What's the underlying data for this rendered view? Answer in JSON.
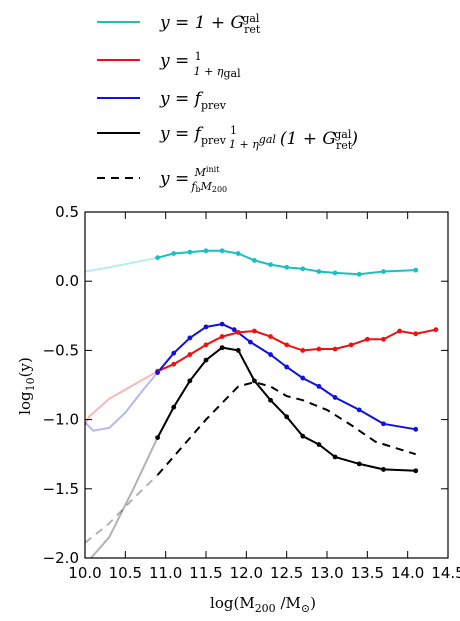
{
  "chart_data": {
    "type": "line",
    "xlabel": "log(M200 /M⊙)",
    "ylabel": "log10(y)",
    "xlim": [
      10.0,
      14.5
    ],
    "ylim": [
      -2.0,
      0.5
    ],
    "xtick_labels": [
      "10.0",
      "10.5",
      "11.0",
      "11.5",
      "12.0",
      "12.5",
      "13.0",
      "13.5",
      "14.0",
      "14.5"
    ],
    "ytick_labels": [
      "-2.0",
      "-1.5",
      "-1.0",
      "-0.5",
      "0.0",
      "0.5"
    ],
    "legend_placement": "top (above axes)",
    "series": [
      {
        "name": "y = 1 + G_ret^gal",
        "color": "#1abfbf",
        "style": "solid",
        "faint_x": [
          10.0,
          10.3,
          10.6,
          10.9
        ],
        "faint_y": [
          0.07,
          0.1,
          0.135,
          0.17
        ],
        "x": [
          10.9,
          11.1,
          11.3,
          11.5,
          11.7,
          11.9,
          12.1,
          12.3,
          12.5,
          12.7,
          12.9,
          13.1,
          13.4,
          13.7,
          14.1
        ],
        "y": [
          0.17,
          0.2,
          0.21,
          0.22,
          0.22,
          0.2,
          0.15,
          0.12,
          0.1,
          0.09,
          0.07,
          0.06,
          0.05,
          0.07,
          0.08
        ]
      },
      {
        "name": "y = 1/(1+η_gal)",
        "color": "#ee1111",
        "style": "solid",
        "faint_x": [
          10.0,
          10.05,
          10.3,
          10.6,
          10.9
        ],
        "faint_y": [
          -1.04,
          -0.98,
          -0.85,
          -0.75,
          -0.65
        ],
        "x": [
          10.9,
          11.1,
          11.3,
          11.5,
          11.7,
          11.9,
          12.1,
          12.3,
          12.5,
          12.7,
          12.9,
          13.1,
          13.3,
          13.5,
          13.7,
          13.9,
          14.1,
          14.35
        ],
        "y": [
          -0.65,
          -0.6,
          -0.53,
          -0.46,
          -0.4,
          -0.37,
          -0.36,
          -0.4,
          -0.46,
          -0.5,
          -0.49,
          -0.49,
          -0.46,
          -0.42,
          -0.42,
          -0.36,
          -0.38,
          -0.35
        ]
      },
      {
        "name": "y = f_prev",
        "color": "#1111dd",
        "style": "solid",
        "faint_x": [
          10.0,
          10.1,
          10.3,
          10.5,
          10.7,
          10.9
        ],
        "faint_y": [
          -1.02,
          -1.08,
          -1.06,
          -0.95,
          -0.8,
          -0.66
        ],
        "x": [
          10.9,
          11.1,
          11.3,
          11.5,
          11.7,
          11.85,
          12.05,
          12.3,
          12.5,
          12.7,
          12.9,
          13.1,
          13.4,
          13.7,
          14.1
        ],
        "y": [
          -0.66,
          -0.52,
          -0.41,
          -0.33,
          -0.31,
          -0.35,
          -0.44,
          -0.53,
          -0.62,
          -0.7,
          -0.76,
          -0.84,
          -0.93,
          -1.03,
          -1.07
        ]
      },
      {
        "name": "y = f_prev · 1/(1+η^gal) · (1 + G_ret^gal)",
        "color": "#000000",
        "style": "solid",
        "faint_x": [
          10.0,
          10.3,
          10.6,
          10.9
        ],
        "faint_y": [
          -2.05,
          -1.85,
          -1.5,
          -1.13
        ],
        "x": [
          10.9,
          11.1,
          11.3,
          11.5,
          11.7,
          11.9,
          12.1,
          12.3,
          12.5,
          12.7,
          12.9,
          13.1,
          13.4,
          13.7,
          14.1
        ],
        "y": [
          -1.13,
          -0.91,
          -0.72,
          -0.57,
          -0.48,
          -0.5,
          -0.72,
          -0.86,
          -0.98,
          -1.12,
          -1.18,
          -1.27,
          -1.32,
          -1.36,
          -1.37
        ]
      },
      {
        "name": "y = M_*^init / (f_b M_200)",
        "color": "#000000",
        "style": "dashed",
        "faint_x": [
          10.0,
          10.3,
          10.6,
          10.9
        ],
        "faint_y": [
          -1.89,
          -1.75,
          -1.57,
          -1.4
        ],
        "x": [
          10.9,
          11.2,
          11.5,
          11.7,
          11.9,
          12.1,
          12.3,
          12.5,
          12.7,
          13.0,
          13.3,
          13.6,
          14.1
        ],
        "y": [
          -1.4,
          -1.2,
          -1.0,
          -0.88,
          -0.76,
          -0.73,
          -0.76,
          -0.83,
          -0.86,
          -0.93,
          -1.04,
          -1.16,
          -1.25
        ]
      }
    ]
  }
}
